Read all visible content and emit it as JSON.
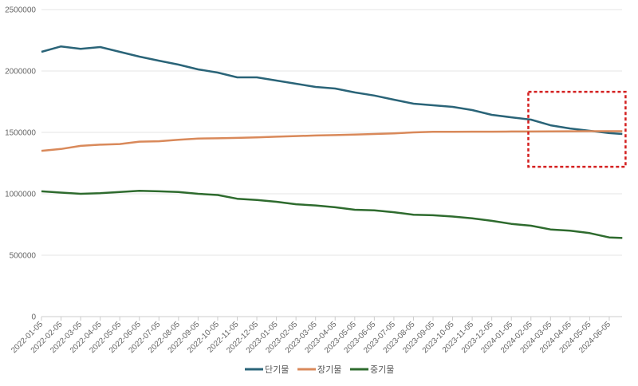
{
  "chart_data": {
    "type": "line",
    "title": "",
    "xlabel": "",
    "ylabel": "",
    "ylim": [
      0,
      2500000
    ],
    "yticks": [
      "0",
      "500000",
      "1000000",
      "1500000",
      "2000000",
      "2500000"
    ],
    "grid": "horizontal",
    "legend": "bottom",
    "x_ticks": [
      "2022-01-05",
      "2022-02-05",
      "2022-03-05",
      "2022-04-05",
      "2022-05-05",
      "2022-06-05",
      "2022-07-05",
      "2022-08-05",
      "2022-09-05",
      "2022-10-05",
      "2022-11-05",
      "2022-12-05",
      "2023-01-05",
      "2023-02-05",
      "2023-03-05",
      "2023-04-05",
      "2023-05-05",
      "2023-06-05",
      "2023-07-05",
      "2023-08-05",
      "2023-09-05",
      "2023-10-05",
      "2023-11-05",
      "2023-12-05",
      "2024-01-05",
      "2024-02-05",
      "2024-03-05",
      "2024-04-05",
      "2024-05-05",
      "2024-06-05"
    ],
    "x": [
      "2022-01-05",
      "2022-02-05",
      "2022-03-05",
      "2022-04-05",
      "2022-05-05",
      "2022-06-05",
      "2022-07-05",
      "2022-08-05",
      "2022-09-05",
      "2022-10-05",
      "2022-11-05",
      "2022-12-05",
      "2023-01-05",
      "2023-02-05",
      "2023-03-05",
      "2023-04-05",
      "2023-05-05",
      "2023-06-05",
      "2023-07-05",
      "2023-08-05",
      "2023-09-05",
      "2023-10-05",
      "2023-11-05",
      "2023-12-05",
      "2024-01-05",
      "2024-02-05",
      "2024-03-05",
      "2024-04-05",
      "2024-05-05",
      "2024-06-05",
      "2024-06-25"
    ],
    "series": [
      {
        "name": "단기물",
        "color": "#2a6478",
        "values": [
          2156000,
          2200000,
          2180000,
          2195000,
          2156000,
          2117000,
          2084000,
          2052000,
          2013000,
          1987000,
          1948000,
          1948000,
          1922000,
          1896000,
          1870000,
          1857000,
          1825000,
          1800000,
          1766000,
          1734000,
          1721000,
          1708000,
          1682000,
          1643000,
          1623000,
          1604000,
          1558000,
          1532000,
          1513000,
          1494000,
          1487000
        ]
      },
      {
        "name": "장기물",
        "color": "#d9895a",
        "values": [
          1350000,
          1365000,
          1390000,
          1400000,
          1405000,
          1425000,
          1428000,
          1440000,
          1450000,
          1452000,
          1455000,
          1460000,
          1465000,
          1470000,
          1475000,
          1478000,
          1482000,
          1487000,
          1492000,
          1500000,
          1505000,
          1505000,
          1506000,
          1506000,
          1507000,
          1507000,
          1508000,
          1509000,
          1510000,
          1510000,
          1510000
        ]
      },
      {
        "name": "중기물",
        "color": "#2e6b2e",
        "values": [
          1020000,
          1010000,
          1000000,
          1005000,
          1015000,
          1025000,
          1020000,
          1015000,
          1000000,
          990000,
          960000,
          950000,
          935000,
          915000,
          905000,
          890000,
          870000,
          865000,
          850000,
          830000,
          825000,
          815000,
          800000,
          780000,
          755000,
          740000,
          710000,
          700000,
          680000,
          645000,
          640000
        ]
      }
    ],
    "annotation": {
      "type": "dashed-rectangle",
      "color": "#d42020",
      "x_range": [
        "2024-02-01",
        "2024-06-30"
      ],
      "y_range": [
        1220000,
        1830000
      ]
    }
  }
}
